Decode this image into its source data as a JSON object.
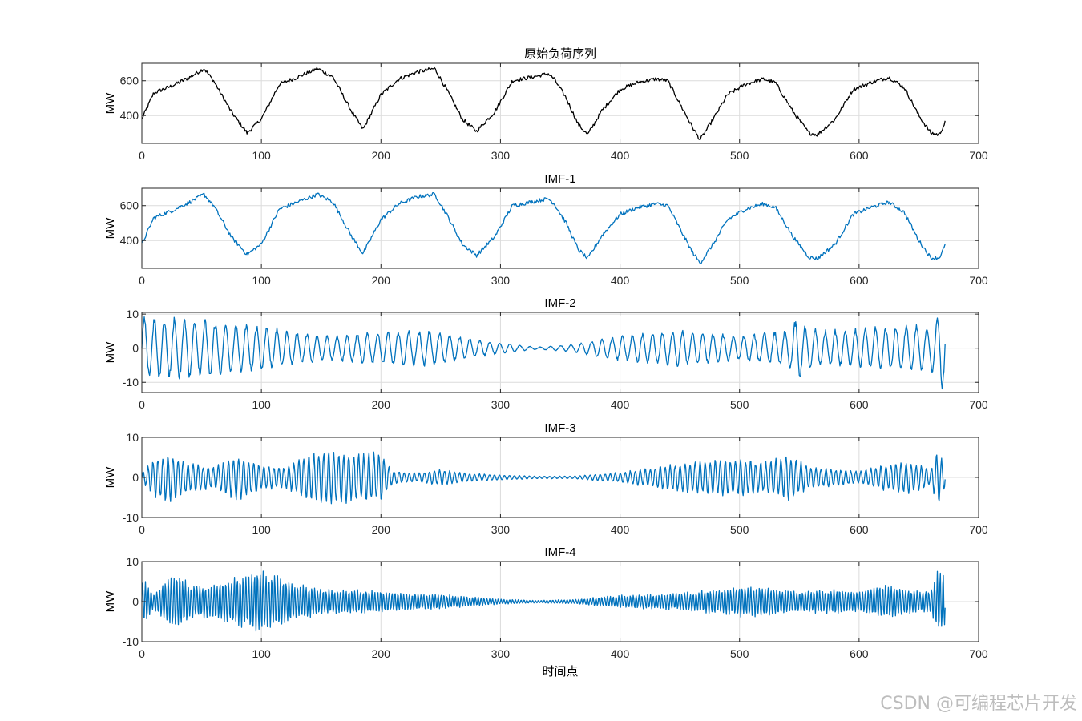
{
  "watermark": "CSDN @可编程芯片开发",
  "colors": {
    "original": "#000000",
    "imf": "#0072BD",
    "grid": "#dcdcdc",
    "axis": "#262626"
  },
  "chart_data": [
    {
      "type": "line",
      "title": "原始负荷序列",
      "xlabel": "",
      "ylabel": "MW",
      "xlim": [
        0,
        700
      ],
      "ylim": [
        240,
        700
      ],
      "xticks": [
        0,
        100,
        200,
        300,
        400,
        500,
        600,
        700
      ],
      "yticks": [
        400,
        600
      ],
      "grid": true,
      "series": [
        {
          "color": "#000000",
          "x": [
            0,
            10,
            25,
            40,
            52,
            60,
            75,
            88,
            100,
            115,
            130,
            147,
            160,
            175,
            185,
            200,
            215,
            230,
            245,
            255,
            268,
            280,
            295,
            310,
            325,
            340,
            345,
            355,
            365,
            373,
            385,
            400,
            415,
            430,
            440,
            450,
            460,
            467,
            478,
            490,
            505,
            520,
            530,
            545,
            558,
            565,
            580,
            595,
            610,
            625,
            638,
            650,
            660,
            667,
            672
          ],
          "y": [
            380,
            530,
            570,
            620,
            670,
            600,
            420,
            300,
            380,
            580,
            620,
            670,
            620,
            430,
            320,
            520,
            610,
            650,
            670,
            550,
            380,
            310,
            420,
            600,
            620,
            640,
            610,
            500,
            350,
            290,
            430,
            550,
            590,
            610,
            600,
            470,
            340,
            260,
            380,
            520,
            580,
            610,
            590,
            420,
            300,
            290,
            380,
            550,
            590,
            620,
            560,
            400,
            300,
            290,
            360
          ]
        }
      ]
    },
    {
      "type": "line",
      "title": "IMF-1",
      "xlabel": "",
      "ylabel": "MW",
      "xlim": [
        0,
        700
      ],
      "ylim": [
        240,
        700
      ],
      "xticks": [
        0,
        100,
        200,
        300,
        400,
        500,
        600,
        700
      ],
      "yticks": [
        400,
        600
      ],
      "grid": true,
      "series": [
        {
          "color": "#0072BD",
          "x": [
            0,
            10,
            25,
            40,
            52,
            60,
            75,
            88,
            100,
            115,
            130,
            147,
            160,
            175,
            185,
            200,
            215,
            230,
            245,
            255,
            268,
            280,
            295,
            310,
            325,
            340,
            345,
            355,
            365,
            373,
            385,
            400,
            415,
            430,
            440,
            450,
            460,
            467,
            478,
            490,
            505,
            520,
            530,
            545,
            558,
            565,
            580,
            595,
            610,
            625,
            638,
            650,
            660,
            667,
            672
          ],
          "y": [
            380,
            530,
            570,
            620,
            665,
            600,
            420,
            320,
            380,
            580,
            620,
            665,
            620,
            430,
            325,
            520,
            610,
            650,
            665,
            550,
            380,
            315,
            420,
            600,
            620,
            640,
            610,
            500,
            350,
            295,
            430,
            550,
            590,
            610,
            600,
            470,
            340,
            270,
            380,
            520,
            580,
            610,
            590,
            420,
            305,
            295,
            380,
            550,
            590,
            620,
            560,
            400,
            300,
            300,
            370
          ]
        }
      ]
    },
    {
      "type": "line",
      "title": "IMF-2",
      "xlabel": "",
      "ylabel": "MW",
      "xlim": [
        0,
        700
      ],
      "ylim": [
        -13,
        10.5
      ],
      "xticks": [
        0,
        100,
        200,
        300,
        400,
        500,
        600,
        700
      ],
      "yticks": [
        -10,
        0,
        10
      ],
      "grid": true,
      "series": [
        {
          "color": "#0072BD",
          "period": 8.5,
          "envelope_x": [
            0,
            40,
            60,
            80,
            100,
            120,
            150,
            200,
            240,
            270,
            300,
            330,
            360,
            400,
            450,
            500,
            540,
            550,
            555,
            570,
            600,
            640,
            660,
            666,
            670,
            672
          ],
          "envelope_amp": [
            8.5,
            8.5,
            7.5,
            6.5,
            6.5,
            5,
            3.5,
            4.5,
            5,
            3,
            1.5,
            0.3,
            1,
            3.5,
            5,
            3.5,
            5,
            9,
            6,
            5,
            5.5,
            6.5,
            6,
            9,
            12,
            10
          ]
        }
      ]
    },
    {
      "type": "line",
      "title": "IMF-3",
      "xlabel": "",
      "ylabel": "MW",
      "xlim": [
        0,
        700
      ],
      "ylim": [
        -10,
        10
      ],
      "xticks": [
        0,
        100,
        200,
        300,
        400,
        500,
        600,
        700
      ],
      "yticks": [
        -10,
        0,
        10
      ],
      "grid": true,
      "series": [
        {
          "color": "#0072BD",
          "period": 4.2,
          "envelope_x": [
            0,
            10,
            20,
            40,
            60,
            80,
            100,
            120,
            140,
            160,
            180,
            200,
            210,
            230,
            250,
            270,
            300,
            330,
            360,
            400,
            450,
            500,
            520,
            540,
            560,
            600,
            620,
            640,
            660,
            666,
            672
          ],
          "envelope_amp": [
            1,
            4.5,
            6,
            3.5,
            2.5,
            5.5,
            3,
            2.5,
            5.5,
            6.5,
            5.5,
            6,
            1.5,
            1,
            2,
            1,
            0.6,
            0.3,
            0.3,
            1.2,
            3.5,
            4.5,
            3.5,
            5.5,
            2.5,
            1.5,
            3,
            4,
            2,
            6.5,
            2.5
          ]
        }
      ]
    },
    {
      "type": "line",
      "title": "IMF-4",
      "xlabel": "时间点",
      "ylabel": "MW",
      "xlim": [
        0,
        700
      ],
      "ylim": [
        -10,
        10
      ],
      "xticks": [
        0,
        100,
        200,
        300,
        400,
        500,
        600,
        700
      ],
      "yticks": [
        -10,
        0,
        10
      ],
      "grid": true,
      "series": [
        {
          "color": "#0072BD",
          "period": 2.4,
          "envelope_x": [
            0,
            10,
            20,
            30,
            40,
            60,
            80,
            100,
            110,
            120,
            150,
            200,
            230,
            260,
            300,
            330,
            360,
            400,
            450,
            500,
            520,
            550,
            580,
            600,
            620,
            640,
            660,
            665,
            672
          ],
          "envelope_amp": [
            6,
            2,
            5,
            7,
            4,
            4,
            6,
            7,
            6.5,
            5,
            3,
            2.5,
            2,
            1.5,
            0.6,
            0.3,
            0.5,
            1.5,
            2,
            3.5,
            3.5,
            2.5,
            3,
            2.5,
            4,
            3,
            2.5,
            7,
            7
          ]
        }
      ]
    }
  ]
}
